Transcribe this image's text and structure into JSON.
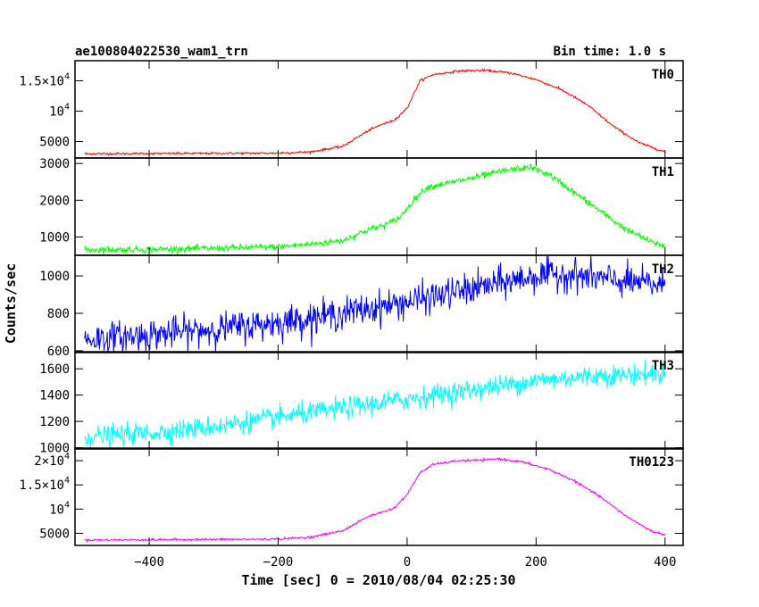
{
  "header": {
    "left_title": "ae100804022530_wam1_trn",
    "right_title": "Bin time: 1.0 s"
  },
  "chart_data": {
    "type": "line",
    "title": "ae100804022530_wam1_trn",
    "subtitle": "Bin time: 1.0 s",
    "xlabel": "Time [sec] 0 = 2010/08/04 02:25:30",
    "ylabel": "Counts/sec",
    "xlim": [
      -515,
      428
    ],
    "x_ticks": [
      -400,
      -200,
      0,
      200,
      400
    ],
    "x_tick_labels": [
      "−400",
      "−200",
      "0",
      "200",
      "400"
    ],
    "x_range": [
      -500,
      400
    ],
    "grid": false,
    "panels": [
      {
        "name": "TH0",
        "color": "#ff0000",
        "ylim": [
          2300,
          18300
        ],
        "y_ticks": [
          5000,
          10000,
          15000
        ],
        "y_tick_labels": [
          {
            "text": "5000",
            "exp": ""
          },
          {
            "text": "10",
            "exp": "4"
          },
          {
            "text": "1.5×10",
            "exp": "4"
          }
        ],
        "noise": 90,
        "profile": [
          [
            -500,
            3000
          ],
          [
            -200,
            3100
          ],
          [
            -150,
            3300
          ],
          [
            -100,
            4200
          ],
          [
            -80,
            5500
          ],
          [
            -60,
            6800
          ],
          [
            -40,
            7800
          ],
          [
            -20,
            8500
          ],
          [
            0,
            10500
          ],
          [
            20,
            15000
          ],
          [
            40,
            16000
          ],
          [
            80,
            16600
          ],
          [
            120,
            16700
          ],
          [
            160,
            16300
          ],
          [
            200,
            15200
          ],
          [
            240,
            13500
          ],
          [
            280,
            11000
          ],
          [
            320,
            7500
          ],
          [
            360,
            4800
          ],
          [
            400,
            3300
          ]
        ]
      },
      {
        "name": "TH1",
        "color": "#00ff00",
        "ylim": [
          500,
          3150
        ],
        "y_ticks": [
          1000,
          2000,
          3000
        ],
        "y_tick_labels": [
          {
            "text": "1000",
            "exp": ""
          },
          {
            "text": "2000",
            "exp": ""
          },
          {
            "text": "3000",
            "exp": ""
          }
        ],
        "noise": 45,
        "profile": [
          [
            -500,
            650
          ],
          [
            -400,
            660
          ],
          [
            -300,
            690
          ],
          [
            -200,
            730
          ],
          [
            -150,
            800
          ],
          [
            -100,
            900
          ],
          [
            -60,
            1200
          ],
          [
            -30,
            1350
          ],
          [
            -10,
            1550
          ],
          [
            10,
            2000
          ],
          [
            30,
            2350
          ],
          [
            60,
            2450
          ],
          [
            100,
            2600
          ],
          [
            150,
            2800
          ],
          [
            190,
            2900
          ],
          [
            220,
            2700
          ],
          [
            260,
            2200
          ],
          [
            300,
            1700
          ],
          [
            340,
            1200
          ],
          [
            380,
            850
          ],
          [
            400,
            760
          ]
        ]
      },
      {
        "name": "TH2",
        "color": "#0000ff",
        "ylim": [
          590,
          1110
        ],
        "y_ticks": [
          600,
          800,
          1000
        ],
        "y_tick_labels": [
          {
            "text": "600",
            "exp": ""
          },
          {
            "text": "800",
            "exp": ""
          },
          {
            "text": "1000",
            "exp": ""
          }
        ],
        "noise": 42,
        "profile": [
          [
            -500,
            660
          ],
          [
            -400,
            685
          ],
          [
            -300,
            715
          ],
          [
            -200,
            750
          ],
          [
            -100,
            800
          ],
          [
            0,
            860
          ],
          [
            100,
            930
          ],
          [
            200,
            1000
          ],
          [
            250,
            1010
          ],
          [
            300,
            985
          ],
          [
            350,
            965
          ],
          [
            400,
            950
          ]
        ]
      },
      {
        "name": "TH3",
        "color": "#00ffff",
        "ylim": [
          990,
          1730
        ],
        "y_ticks": [
          1000,
          1200,
          1400,
          1600
        ],
        "y_tick_labels": [
          {
            "text": "1000",
            "exp": ""
          },
          {
            "text": "1200",
            "exp": ""
          },
          {
            "text": "1400",
            "exp": ""
          },
          {
            "text": "1600",
            "exp": ""
          }
        ],
        "noise": 40,
        "profile": [
          [
            -500,
            1080
          ],
          [
            -400,
            1110
          ],
          [
            -300,
            1160
          ],
          [
            -200,
            1230
          ],
          [
            -100,
            1300
          ],
          [
            0,
            1370
          ],
          [
            100,
            1440
          ],
          [
            200,
            1510
          ],
          [
            300,
            1550
          ],
          [
            400,
            1560
          ]
        ]
      },
      {
        "name": "TH0123",
        "color": "#ff00ff",
        "ylim": [
          2500,
          22600
        ],
        "y_ticks": [
          5000,
          10000,
          15000,
          20000
        ],
        "y_tick_labels": [
          {
            "text": "5000",
            "exp": ""
          },
          {
            "text": "10",
            "exp": "4"
          },
          {
            "text": "1.5×10",
            "exp": "4"
          },
          {
            "text": "2×10",
            "exp": "4"
          }
        ],
        "noise": 110,
        "profile": [
          [
            -500,
            3600
          ],
          [
            -200,
            3800
          ],
          [
            -150,
            4200
          ],
          [
            -100,
            5500
          ],
          [
            -80,
            7000
          ],
          [
            -60,
            8500
          ],
          [
            -40,
            9300
          ],
          [
            -20,
            10200
          ],
          [
            0,
            13000
          ],
          [
            20,
            17500
          ],
          [
            40,
            19200
          ],
          [
            80,
            20000
          ],
          [
            120,
            20100
          ],
          [
            140,
            20400
          ],
          [
            180,
            19700
          ],
          [
            220,
            18200
          ],
          [
            260,
            15800
          ],
          [
            300,
            12500
          ],
          [
            340,
            8500
          ],
          [
            380,
            5400
          ],
          [
            400,
            4700
          ]
        ]
      }
    ]
  }
}
